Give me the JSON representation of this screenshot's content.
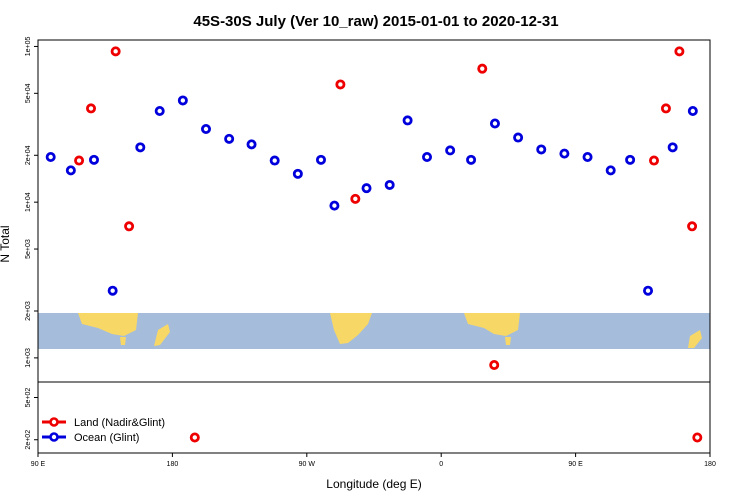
{
  "chart_data": {
    "type": "scatter",
    "title": "45S-30S July (Ver 10_raw)   2015-01-01 to 2020-12-31",
    "xlabel": "Longitude (deg E)",
    "ylabel": "N Total",
    "xlim": [
      90,
      540
    ],
    "x_ticks": [
      {
        "value": 90,
        "label": "90 E"
      },
      {
        "value": 180,
        "label": "180"
      },
      {
        "value": 270,
        "label": "90 W"
      },
      {
        "value": 360,
        "label": "0"
      },
      {
        "value": 450,
        "label": "90 E"
      },
      {
        "value": 540,
        "label": "180"
      }
    ],
    "y_scale": "log",
    "ylim_main": [
      700,
      110000
    ],
    "ylim_lower": [
      150,
      700
    ],
    "y_ticks": [
      {
        "value": 100000,
        "label": "1e+05"
      },
      {
        "value": 50000,
        "label": "5e+04"
      },
      {
        "value": 20000,
        "label": "2e+04"
      },
      {
        "value": 10000,
        "label": "1e+04"
      },
      {
        "value": 5000,
        "label": "5e+03"
      },
      {
        "value": 2000,
        "label": "2e+03"
      },
      {
        "value": 1000,
        "label": "1e+03"
      },
      {
        "value": 500,
        "label": "5e+02"
      },
      {
        "value": 200,
        "label": "2e+02"
      }
    ],
    "legend_position": "bottom-left",
    "series": [
      {
        "name": "Land (Nadir&Glint)",
        "color": "#ee0000",
        "points": [
          [
            117.5,
            18500
          ],
          [
            125.5,
            40000
          ],
          [
            142,
            93000
          ],
          [
            151,
            7000
          ],
          [
            195,
            210
          ],
          [
            292.5,
            57000
          ],
          [
            302.5,
            10500
          ],
          [
            387.5,
            72000
          ],
          [
            395.5,
            900
          ],
          [
            502.5,
            18500
          ],
          [
            510.5,
            40000
          ],
          [
            519.5,
            93000
          ],
          [
            528,
            7000
          ],
          [
            531.5,
            210
          ]
        ]
      },
      {
        "name": "Ocean (Glint)",
        "color": "#0000dd",
        "points": [
          [
            98.5,
            19500
          ],
          [
            112,
            16000
          ],
          [
            127.5,
            18700
          ],
          [
            140,
            2700
          ],
          [
            158.5,
            22500
          ],
          [
            171.5,
            38500
          ],
          [
            187,
            45000
          ],
          [
            202.5,
            29500
          ],
          [
            218,
            25500
          ],
          [
            233,
            23500
          ],
          [
            248.5,
            18500
          ],
          [
            264,
            15200
          ],
          [
            279.5,
            18700
          ],
          [
            288.5,
            9500
          ],
          [
            310,
            12300
          ],
          [
            325.5,
            12900
          ],
          [
            337.5,
            33500
          ],
          [
            350.5,
            19500
          ],
          [
            366,
            21500
          ],
          [
            380,
            18700
          ],
          [
            396,
            32000
          ],
          [
            411.5,
            26000
          ],
          [
            427,
            21800
          ],
          [
            442.5,
            20500
          ],
          [
            458,
            19500
          ],
          [
            473.5,
            16000
          ],
          [
            486.5,
            18700
          ],
          [
            498.5,
            2700
          ],
          [
            515,
            22500
          ],
          [
            528.5,
            38500
          ]
        ]
      }
    ]
  },
  "map_strip_colors": {
    "ocean": "#a6bcdb",
    "land": "#f7d866"
  }
}
